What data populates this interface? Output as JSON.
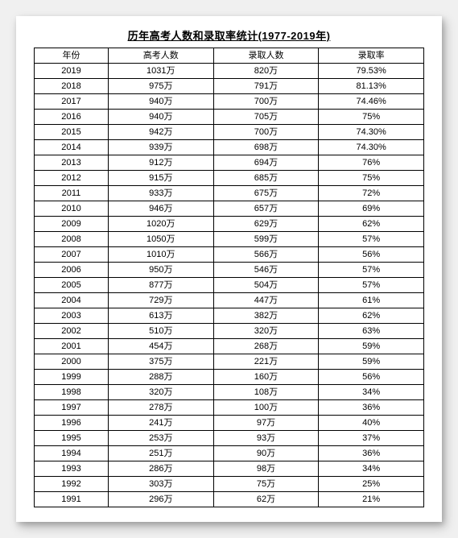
{
  "title": "历年高考人数和录取率统计(1977-2019年)",
  "table": {
    "type": "table",
    "columns": [
      "年份",
      "高考人数",
      "录取人数",
      "录取率"
    ],
    "column_widths_pct": [
      19,
      27,
      27,
      27
    ],
    "header_fontsize": 11,
    "cell_fontsize": 11,
    "border_color": "#000000",
    "background_color": "#ffffff",
    "text_color": "#000000",
    "title_fontsize": 13,
    "title_underline": true,
    "rows": [
      [
        "2019",
        "1031万",
        "820万",
        "79.53%"
      ],
      [
        "2018",
        "975万",
        "791万",
        "81.13%"
      ],
      [
        "2017",
        "940万",
        "700万",
        "74.46%"
      ],
      [
        "2016",
        "940万",
        "705万",
        "75%"
      ],
      [
        "2015",
        "942万",
        "700万",
        "74.30%"
      ],
      [
        "2014",
        "939万",
        "698万",
        "74.30%"
      ],
      [
        "2013",
        "912万",
        "694万",
        "76%"
      ],
      [
        "2012",
        "915万",
        "685万",
        "75%"
      ],
      [
        "2011",
        "933万",
        "675万",
        "72%"
      ],
      [
        "2010",
        "946万",
        "657万",
        "69%"
      ],
      [
        "2009",
        "1020万",
        "629万",
        "62%"
      ],
      [
        "2008",
        "1050万",
        "599万",
        "57%"
      ],
      [
        "2007",
        "1010万",
        "566万",
        "56%"
      ],
      [
        "2006",
        "950万",
        "546万",
        "57%"
      ],
      [
        "2005",
        "877万",
        "504万",
        "57%"
      ],
      [
        "2004",
        "729万",
        "447万",
        "61%"
      ],
      [
        "2003",
        "613万",
        "382万",
        "62%"
      ],
      [
        "2002",
        "510万",
        "320万",
        "63%"
      ],
      [
        "2001",
        "454万",
        "268万",
        "59%"
      ],
      [
        "2000",
        "375万",
        "221万",
        "59%"
      ],
      [
        "1999",
        "288万",
        "160万",
        "56%"
      ],
      [
        "1998",
        "320万",
        "108万",
        "34%"
      ],
      [
        "1997",
        "278万",
        "100万",
        "36%"
      ],
      [
        "1996",
        "241万",
        "97万",
        "40%"
      ],
      [
        "1995",
        "253万",
        "93万",
        "37%"
      ],
      [
        "1994",
        "251万",
        "90万",
        "36%"
      ],
      [
        "1993",
        "286万",
        "98万",
        "34%"
      ],
      [
        "1992",
        "303万",
        "75万",
        "25%"
      ],
      [
        "1991",
        "296万",
        "62万",
        "21%"
      ]
    ]
  }
}
